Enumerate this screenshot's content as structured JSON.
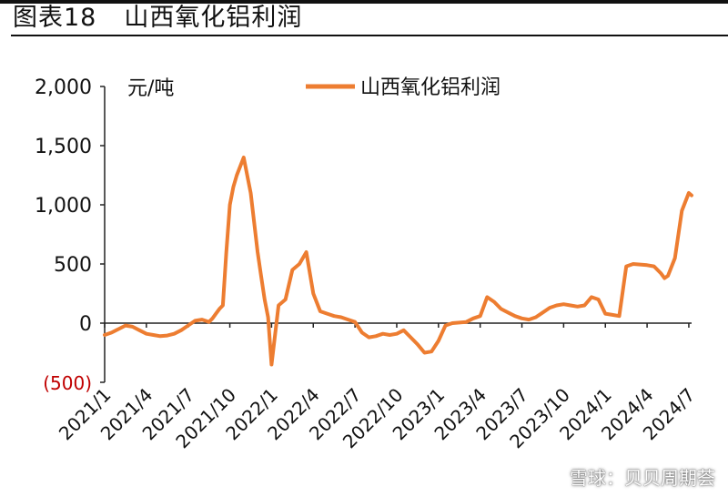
{
  "figure": {
    "label": "图表18",
    "caption": "山西氧化铝利润"
  },
  "watermark": {
    "icon": "snowball-logo-icon",
    "text": "雪球：贝贝周期荟"
  },
  "colors": {
    "series": "#ED7D31",
    "negative_label": "#C00000",
    "axis": "#222222",
    "text": "#111111"
  },
  "chart_data": {
    "type": "line",
    "unit_label": "元/吨",
    "ylim": [
      -500,
      2000
    ],
    "yticks": [
      2000,
      1500,
      1000,
      500,
      0,
      -500
    ],
    "ytick_labels": [
      "2,000",
      "1,500",
      "1,000",
      "500",
      "0",
      "(500)"
    ],
    "xlim": [
      "2021/1",
      "2024/7"
    ],
    "xtick_labels": [
      "2021/1",
      "2021/4",
      "2021/7",
      "2021/10",
      "2022/1",
      "2022/4",
      "2022/7",
      "2022/10",
      "2023/1",
      "2023/4",
      "2023/7",
      "2023/10",
      "2024/1",
      "2024/4",
      "2024/7"
    ],
    "legend_position": "top-center",
    "grid": false,
    "series": [
      {
        "name": "山西氧化铝利润",
        "x": [
          "2021/1",
          "2021/1.5",
          "2021/2",
          "2021/2.5",
          "2021/3",
          "2021/3.5",
          "2021/4",
          "2021/4.5",
          "2021/5",
          "2021/5.5",
          "2021/6",
          "2021/6.5",
          "2021/7",
          "2021/7.5",
          "2021/8",
          "2021/8.25",
          "2021/8.5",
          "2021/8.75",
          "2021/9",
          "2021/9.25",
          "2021/9.5",
          "2021/9.75",
          "2021/10",
          "2021/10.25",
          "2021/10.5",
          "2021/11",
          "2021/11.5",
          "2021/12",
          "2021/12.25",
          "2021/12.5",
          "2021/12.75",
          "2022/1",
          "2022/1.5",
          "2022/2",
          "2022/2.5",
          "2022/3",
          "2022/3.5",
          "2022/4",
          "2022/4.5",
          "2022/5",
          "2022/5.5",
          "2022/6",
          "2022/6.5",
          "2022/7",
          "2022/7.5",
          "2022/8",
          "2022/8.5",
          "2022/9",
          "2022/9.5",
          "2022/10",
          "2022/10.5",
          "2022/11",
          "2022/11.5",
          "2022/12",
          "2022/12.5",
          "2023/1",
          "2023/1.5",
          "2023/2",
          "2023/2.5",
          "2023/3",
          "2023/3.5",
          "2023/4",
          "2023/4.5",
          "2023/5",
          "2023/5.5",
          "2023/6",
          "2023/6.5",
          "2023/7",
          "2023/7.5",
          "2023/8",
          "2023/8.5",
          "2023/9",
          "2023/9.5",
          "2023/10",
          "2023/10.5",
          "2023/11",
          "2023/11.5",
          "2023/12",
          "2023/12.5",
          "2024/1",
          "2024/1.5",
          "2024/2",
          "2024/2.5",
          "2024/3",
          "2024/3.5",
          "2024/4",
          "2024/4.5",
          "2024/5",
          "2024/5.25",
          "2024/5.5",
          "2024/6",
          "2024/6.5",
          "2024/7",
          "2024/7.2"
        ],
        "values": [
          -100,
          -80,
          -50,
          -20,
          -30,
          -60,
          -90,
          -100,
          -110,
          -105,
          -90,
          -60,
          -20,
          20,
          30,
          20,
          10,
          40,
          80,
          120,
          150,
          600,
          1000,
          1150,
          1250,
          1400,
          1100,
          600,
          400,
          200,
          50,
          -350,
          150,
          200,
          450,
          500,
          600,
          250,
          100,
          80,
          60,
          50,
          30,
          10,
          -80,
          -120,
          -110,
          -90,
          -100,
          -90,
          -60,
          -120,
          -180,
          -250,
          -240,
          -150,
          -20,
          0,
          5,
          10,
          40,
          60,
          220,
          180,
          120,
          90,
          60,
          40,
          30,
          50,
          90,
          130,
          150,
          160,
          150,
          140,
          150,
          220,
          200,
          80,
          70,
          60,
          480,
          500,
          495,
          490,
          480,
          420,
          380,
          400,
          550,
          950,
          1100,
          1080
        ]
      }
    ]
  }
}
